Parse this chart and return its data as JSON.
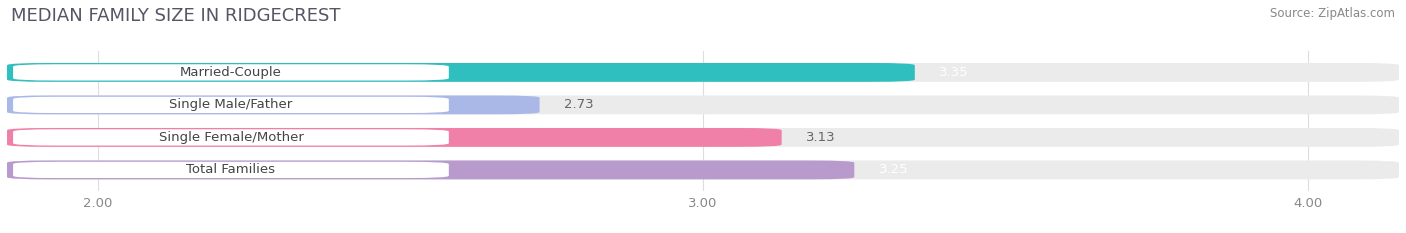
{
  "title": "MEDIAN FAMILY SIZE IN RIDGECREST",
  "source": "Source: ZipAtlas.com",
  "categories": [
    "Married-Couple",
    "Single Male/Father",
    "Single Female/Mother",
    "Total Families"
  ],
  "values": [
    3.35,
    2.73,
    3.13,
    3.25
  ],
  "bar_colors": [
    "#30bfbf",
    "#aab8e8",
    "#f080a8",
    "#b89acc"
  ],
  "value_colors": [
    "white",
    "#666666",
    "#666666",
    "white"
  ],
  "xlim": [
    1.85,
    4.15
  ],
  "xticks": [
    2.0,
    3.0,
    4.0
  ],
  "xtick_labels": [
    "2.00",
    "3.00",
    "4.00"
  ],
  "bar_height": 0.58,
  "label_fontsize": 9.5,
  "value_fontsize": 9.5,
  "title_fontsize": 13,
  "source_fontsize": 8.5,
  "background_color": "#ffffff",
  "bar_bg_color": "#ebebeb",
  "label_box_color": "#ffffff",
  "grid_color": "#dddddd"
}
